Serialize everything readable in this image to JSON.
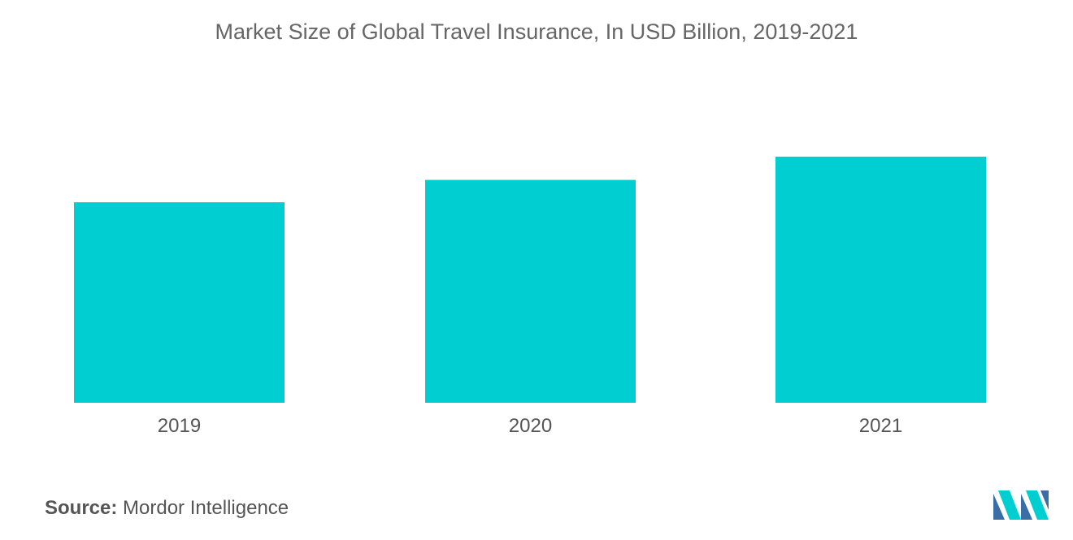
{
  "chart_data": {
    "type": "bar",
    "title": "Market Size of Global Travel Insurance, In USD Billion, 2019-2021",
    "categories": [
      "2019",
      "2020",
      "2021"
    ],
    "values": [
      22.4,
      24.9,
      27.5
    ],
    "xlabel": "",
    "ylabel": "",
    "ylim": [
      0,
      45
    ],
    "grid": false,
    "legend": "none",
    "bar_color": "#00CED1"
  },
  "source": {
    "label": "Source:",
    "text": "Mordor Intelligence"
  },
  "logo": {
    "icon": "mordor-intelligence-logo-icon",
    "colors": [
      "#3A6EA5",
      "#00CED1"
    ]
  }
}
